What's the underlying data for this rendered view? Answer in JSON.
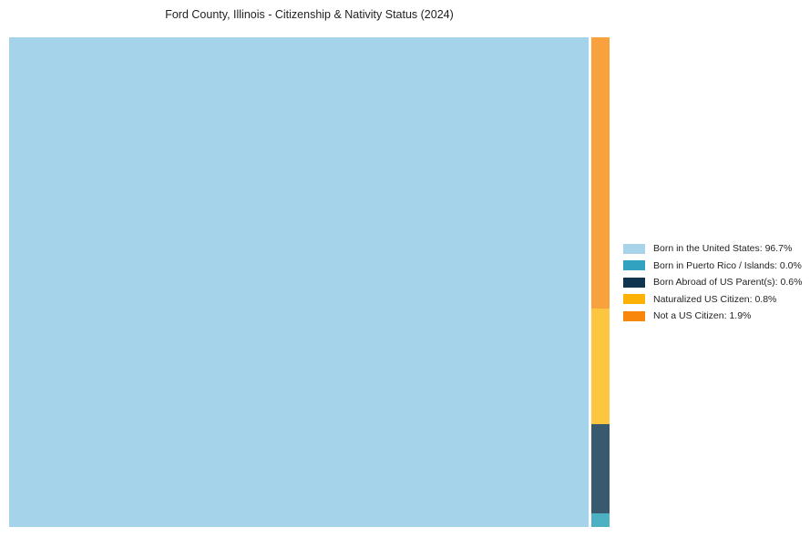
{
  "title": "Ford County, Illinois - Citizenship & Nativity Status (2024)",
  "chart_data": {
    "type": "treemap",
    "title": "Ford County, Illinois - Citizenship & Nativity Status (2024)",
    "categories": [
      "Born in the United States",
      "Born in Puerto Rico / Islands",
      "Born Abroad of US Parent(s)",
      "Naturalized US Citizen",
      "Not a US Citizen"
    ],
    "values": [
      96.7,
      0.0,
      0.6,
      0.8,
      1.9
    ],
    "unit": "%",
    "legend_position": "right",
    "layout_hint": "single large tile left (96.7%), thin right column stacked top-to-bottom: Not a US Citizen, Naturalized US Citizen, Born Abroad of US Parent(s), Born in Puerto Rico / Islands"
  },
  "tiles": {
    "born_in_us": {
      "label": "Born in the United States",
      "value_pct": 96.7,
      "color": "#a5d3ea"
    },
    "not_us_citizen": {
      "label": "Not a US Citizen",
      "value_pct": 1.9,
      "color": "#f9a13c"
    },
    "naturalized": {
      "label": "Naturalized US Citizen",
      "value_pct": 0.8,
      "color": "#fdc640"
    },
    "born_abroad": {
      "label": "Born Abroad of US Parent(s)",
      "value_pct": 0.6,
      "color": "#395a6e"
    },
    "puerto_rico": {
      "label": "Born in Puerto Rico / Islands",
      "value_pct": 0.0,
      "color": "#4db1c4"
    }
  },
  "legend": {
    "items": [
      {
        "label": "Born in the United States: 96.7%",
        "color": "#a8d3e8"
      },
      {
        "label": "Born in Puerto Rico / Islands: 0.0%",
        "color": "#31a3c1"
      },
      {
        "label": "Born Abroad of US Parent(s): 0.6%",
        "color": "#10344e"
      },
      {
        "label": "Naturalized US Citizen: 0.8%",
        "color": "#fcb105"
      },
      {
        "label": "Not a US Citizen: 1.9%",
        "color": "#f8860d"
      }
    ]
  }
}
